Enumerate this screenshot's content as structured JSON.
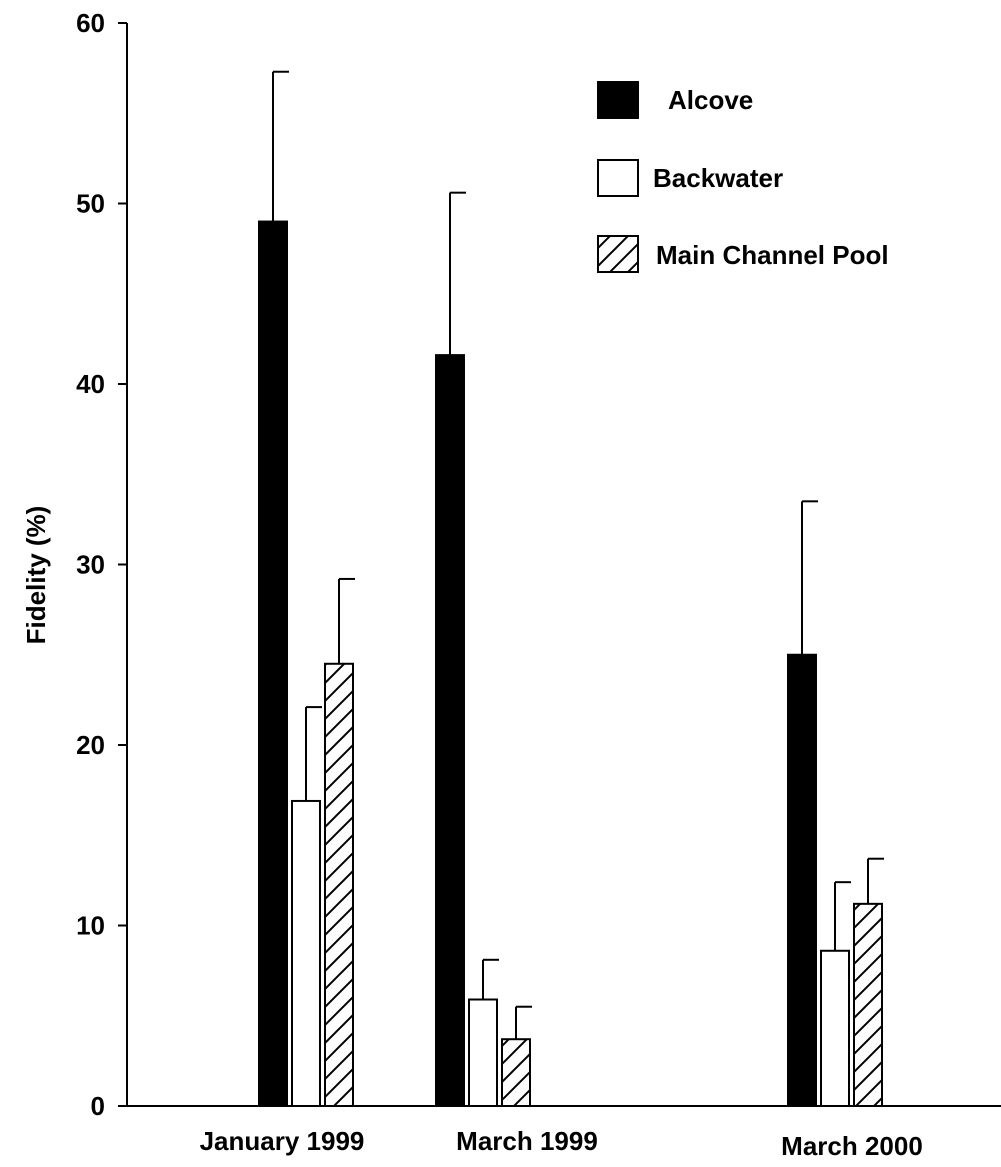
{
  "chart_data": {
    "type": "bar",
    "title": "",
    "xlabel": "",
    "ylabel": "Fidelity (%)",
    "ylim": [
      0,
      60
    ],
    "yticks": [
      0,
      10,
      20,
      30,
      40,
      50,
      60
    ],
    "grid": false,
    "legend_position": "top-right",
    "categories": [
      "January 1999",
      "March 1999",
      "March 2000"
    ],
    "series": [
      {
        "name": "Alcove",
        "style": "solid-black",
        "values": [
          49.0,
          41.6,
          25.0
        ],
        "error_upper": [
          57.3,
          50.6,
          33.5
        ]
      },
      {
        "name": "Backwater",
        "style": "white",
        "values": [
          16.9,
          5.9,
          8.6
        ],
        "error_upper": [
          22.1,
          8.1,
          12.4
        ]
      },
      {
        "name": "Main Channel Pool",
        "style": "hatched",
        "values": [
          24.5,
          3.7,
          11.2
        ],
        "error_upper": [
          29.2,
          5.5,
          13.7
        ]
      }
    ],
    "colors": {
      "bar_fill": "#000000",
      "bar_empty": "#ffffff",
      "stroke": "#000000"
    }
  }
}
